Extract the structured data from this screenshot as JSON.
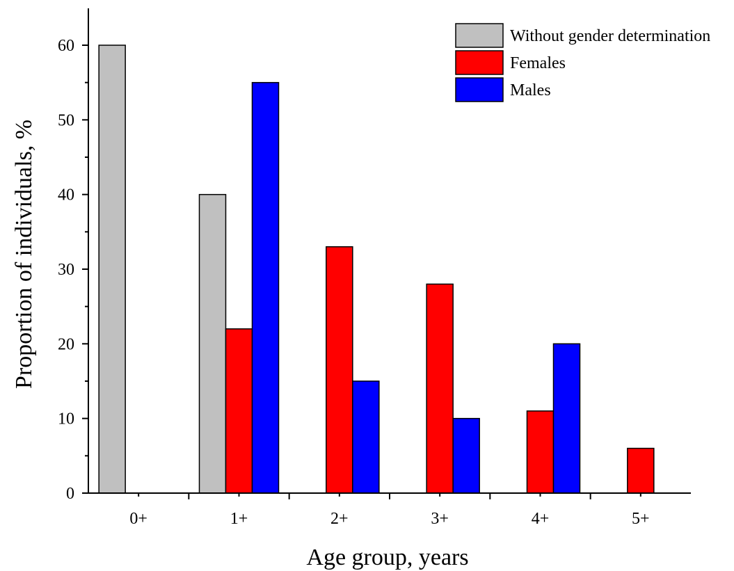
{
  "chart_data": {
    "type": "bar",
    "categories": [
      "0+",
      "1+",
      "2+",
      "3+",
      "4+",
      "5+"
    ],
    "series": [
      {
        "name": "Without gender determination",
        "color": "#c0c0c0",
        "values": [
          60,
          40,
          0,
          0,
          0,
          0
        ]
      },
      {
        "name": "Females",
        "color": "#ff0000",
        "values": [
          0,
          22,
          33,
          28,
          11,
          6
        ]
      },
      {
        "name": "Males",
        "color": "#0000ff",
        "values": [
          0,
          55,
          15,
          10,
          20,
          0
        ]
      }
    ],
    "xlabel": "Age group, years",
    "ylabel": "Proportion of individuals, %",
    "ylim": [
      0,
      65
    ],
    "yticks": [
      0,
      10,
      20,
      30,
      40,
      50,
      60
    ],
    "grid": false,
    "legend_position": "top-right"
  }
}
